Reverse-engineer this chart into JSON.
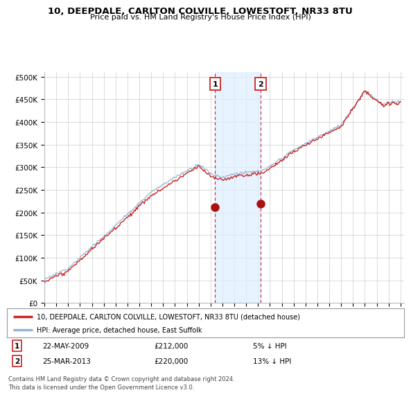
{
  "title": "10, DEEPDALE, CARLTON COLVILLE, LOWESTOFT, NR33 8TU",
  "subtitle": "Price paid vs. HM Land Registry's House Price Index (HPI)",
  "ytick_vals": [
    0,
    50000,
    100000,
    150000,
    200000,
    250000,
    300000,
    350000,
    400000,
    450000,
    500000
  ],
  "ylim": [
    0,
    510000
  ],
  "xlim_start": 1995.0,
  "xlim_end": 2025.3,
  "hpi_color": "#92b4d4",
  "price_color": "#cc2222",
  "marker_color": "#aa1111",
  "shaded_color": "#ddeeff",
  "dashed_line_color": "#cc2222",
  "legend_label_price": "10, DEEPDALE, CARLTON COLVILLE, LOWESTOFT, NR33 8TU (detached house)",
  "legend_label_hpi": "HPI: Average price, detached house, East Suffolk",
  "transaction1_x": 2009.38,
  "transaction1_y": 212000,
  "transaction1_label": "1",
  "transaction2_x": 2013.23,
  "transaction2_y": 220000,
  "transaction2_label": "2",
  "annotation1_date": "22-MAY-2009",
  "annotation1_price": "£212,000",
  "annotation1_hpi": "5% ↓ HPI",
  "annotation2_date": "25-MAR-2013",
  "annotation2_price": "£220,000",
  "annotation2_hpi": "13% ↓ HPI",
  "footnote": "Contains HM Land Registry data © Crown copyright and database right 2024.\nThis data is licensed under the Open Government Licence v3.0.",
  "xtick_years": [
    1995,
    1996,
    1997,
    1998,
    1999,
    2000,
    2001,
    2002,
    2003,
    2004,
    2005,
    2006,
    2007,
    2008,
    2009,
    2010,
    2011,
    2012,
    2013,
    2014,
    2015,
    2016,
    2017,
    2018,
    2019,
    2020,
    2021,
    2022,
    2023,
    2024,
    2025
  ],
  "background_color": "#ffffff",
  "plot_bg_color": "#ffffff",
  "grid_color": "#cccccc"
}
